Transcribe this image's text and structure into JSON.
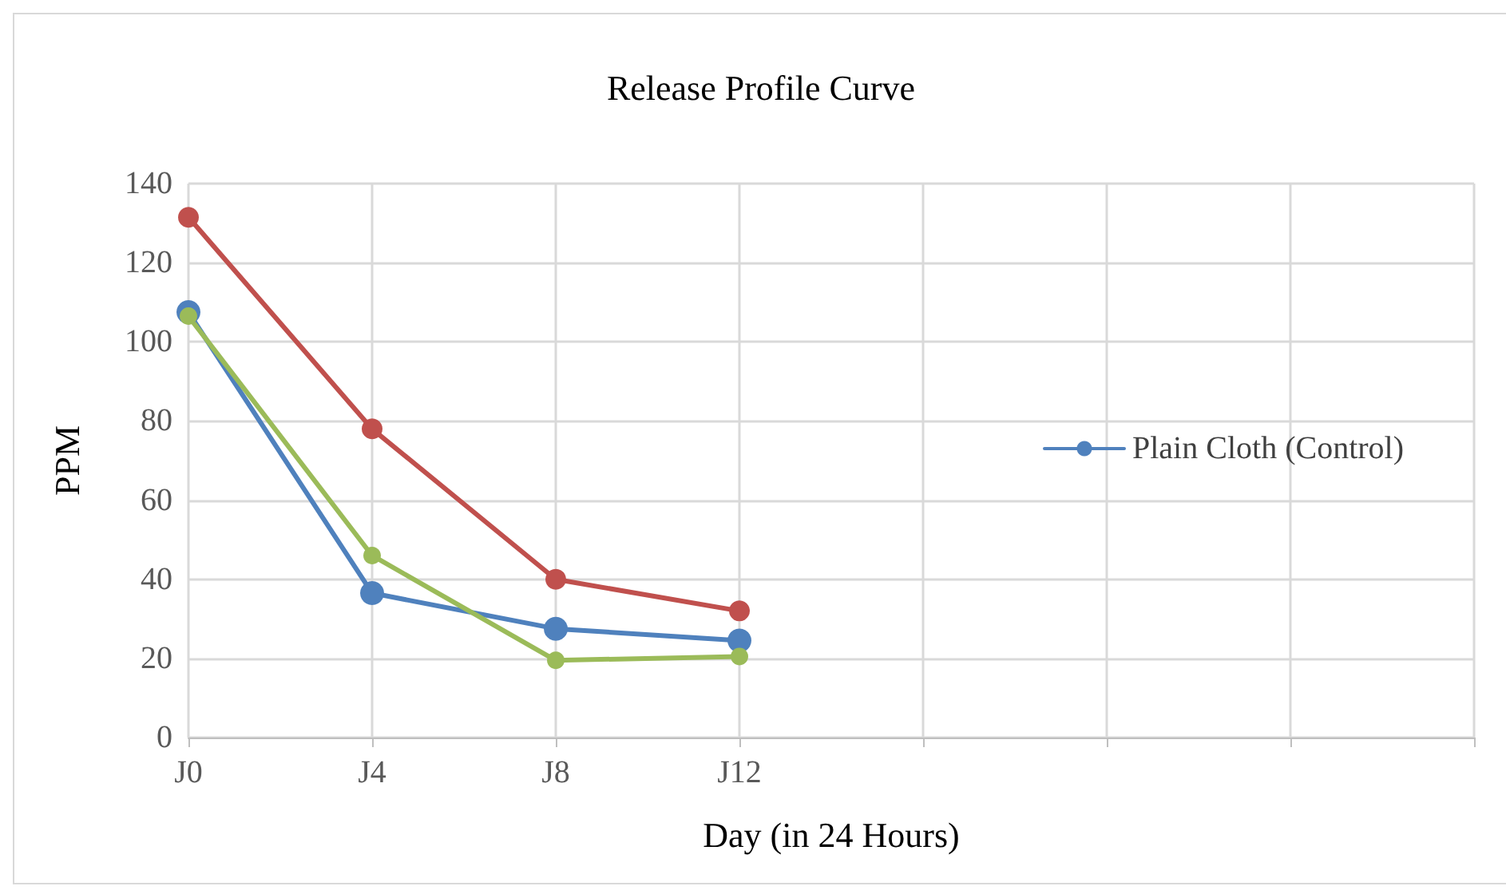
{
  "chart_data": {
    "type": "line",
    "title": "Release Profile Curve",
    "xlabel": "Day (in 24 Hours)",
    "ylabel": "PPM",
    "categories": [
      "J0",
      "J4",
      "J8",
      "J12",
      null,
      null,
      null,
      null
    ],
    "series": [
      {
        "name": "Plain Cloth (Control)",
        "color": "#4f81bd",
        "values": [
          107.5,
          36.5,
          27.5,
          24.5,
          null,
          null,
          null,
          null
        ]
      },
      {
        "color": "#c0504d",
        "values": [
          131.5,
          78,
          40,
          32,
          null,
          null,
          null,
          null
        ]
      },
      {
        "color": "#9bbb59",
        "values": [
          106.5,
          46,
          19.5,
          20.5,
          null,
          null,
          null,
          null
        ]
      }
    ],
    "ylim": [
      0,
      140
    ],
    "yticks": [
      0,
      20,
      40,
      60,
      80,
      100,
      120,
      140
    ],
    "grid": true,
    "legend": "right",
    "marker": "circle",
    "line_style": "solid"
  }
}
